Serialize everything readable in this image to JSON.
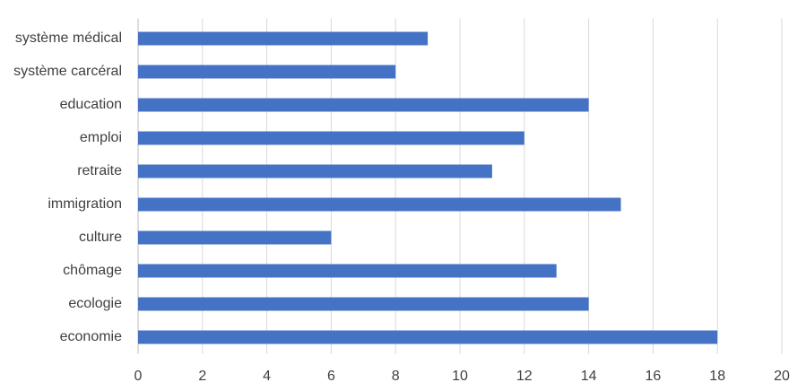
{
  "chart_data": {
    "type": "hbar",
    "categories": [
      "système médical",
      "système carcéral",
      "education",
      "emploi",
      "retraite",
      "immigration",
      "culture",
      "chômage",
      "ecologie",
      "economie"
    ],
    "values": [
      9,
      8,
      14,
      12,
      11,
      15,
      6,
      13,
      14,
      18
    ],
    "color": "#4472c4",
    "xlim": [
      0,
      20
    ],
    "xticks": [
      0,
      2,
      4,
      6,
      8,
      10,
      12,
      14,
      16,
      18,
      20
    ],
    "grid": true
  }
}
